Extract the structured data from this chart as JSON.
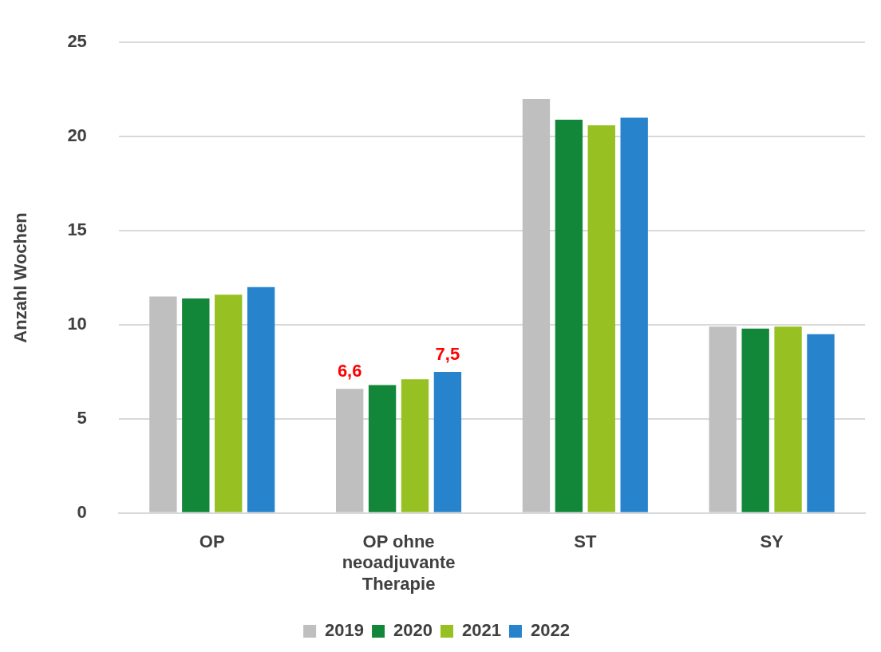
{
  "chart_data": {
    "type": "bar",
    "ylabel": "Anzahl Wochen",
    "categories": [
      "OP",
      "OP ohne neoadjuvante Therapie",
      "ST",
      "SY"
    ],
    "series": [
      {
        "name": "2019",
        "color": "#bfbfbf",
        "values": [
          11.5,
          6.6,
          22.0,
          9.9
        ],
        "value_labels": [
          null,
          "6,6",
          null,
          null
        ]
      },
      {
        "name": "2020",
        "color": "#12873a",
        "values": [
          11.4,
          6.8,
          20.9,
          9.8
        ]
      },
      {
        "name": "2021",
        "color": "#97c123",
        "values": [
          11.6,
          7.1,
          20.6,
          9.9
        ]
      },
      {
        "name": "2022",
        "color": "#2683cc",
        "values": [
          12.0,
          7.5,
          21.0,
          9.5
        ],
        "value_labels": [
          null,
          "7,5",
          null,
          null
        ]
      }
    ],
    "ylim": [
      0,
      25
    ],
    "yticks": [
      0,
      5,
      10,
      15,
      20,
      25
    ],
    "grid": "y",
    "legend": "bottom"
  }
}
